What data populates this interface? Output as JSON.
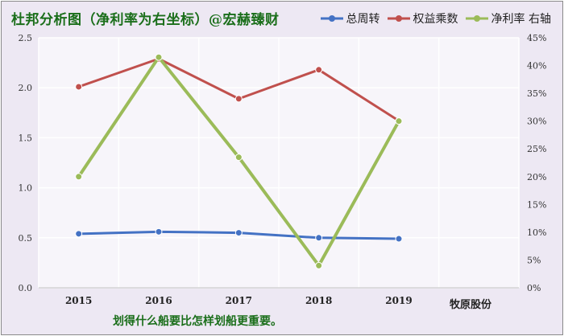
{
  "title": "杜邦分析图（净利率为右坐标）@宏赫臻财",
  "caption": "划得什么船要比怎样划船更重要。",
  "company": "牧原股份",
  "chart_data": {
    "type": "line",
    "categories": [
      "2015",
      "2016",
      "2017",
      "2018",
      "2019"
    ],
    "extra_category_slots": 1,
    "y_left": {
      "ticks": [
        "0.0",
        "0.5",
        "1.0",
        "1.5",
        "2.0",
        "2.5"
      ],
      "ylim": [
        0,
        2.5
      ]
    },
    "y_right": {
      "ticks": [
        "0%",
        "5%",
        "10%",
        "15%",
        "20%",
        "25%",
        "30%",
        "35%",
        "40%",
        "45%"
      ],
      "ylim": [
        0,
        0.45
      ]
    },
    "grid": true,
    "legend_position": "top-right",
    "series": [
      {
        "name": "总周转",
        "axis": "left",
        "color": "#4472c4",
        "values": [
          0.54,
          0.56,
          0.55,
          0.5,
          0.49
        ]
      },
      {
        "name": "权益乘数",
        "axis": "left",
        "color": "#c0504d",
        "values": [
          2.01,
          2.29,
          1.89,
          2.18,
          1.67
        ]
      },
      {
        "name": "净利率 右轴",
        "axis": "right",
        "color": "#9bbb59",
        "values": [
          0.2,
          0.415,
          0.235,
          0.04,
          0.3
        ]
      }
    ]
  }
}
